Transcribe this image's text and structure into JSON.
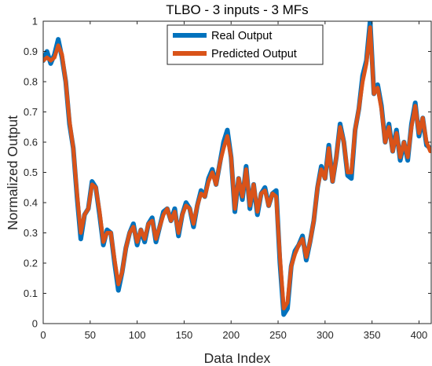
{
  "chart_data": {
    "type": "line",
    "title": "TLBO - 3 inputs - 3 MFs",
    "xlabel": "Data Index",
    "ylabel": "Normalized Output",
    "xlim": [
      0,
      413
    ],
    "ylim": [
      0,
      1
    ],
    "xticks": [
      0,
      50,
      100,
      150,
      200,
      250,
      300,
      350,
      400
    ],
    "yticks": [
      0,
      0.1,
      0.2,
      0.3,
      0.4,
      0.5,
      0.6,
      0.7,
      0.8,
      0.9,
      1
    ],
    "xtick_labels": [
      "0",
      "50",
      "100",
      "150",
      "200",
      "250",
      "300",
      "350",
      "400"
    ],
    "ytick_labels": [
      "0",
      "0.1",
      "0.2",
      "0.3",
      "0.4",
      "0.5",
      "0.6",
      "0.7",
      "0.8",
      "0.9",
      "1"
    ],
    "grid": false,
    "legend_position": "top-center",
    "series": [
      {
        "name": "Real Output",
        "color": "#0072BD",
        "x": [
          0,
          4,
          8,
          12,
          16,
          20,
          24,
          28,
          32,
          36,
          40,
          44,
          48,
          52,
          56,
          60,
          64,
          68,
          72,
          76,
          80,
          84,
          88,
          92,
          96,
          100,
          104,
          108,
          112,
          116,
          120,
          124,
          128,
          132,
          136,
          140,
          144,
          148,
          152,
          156,
          160,
          164,
          168,
          172,
          176,
          180,
          184,
          188,
          192,
          196,
          200,
          204,
          208,
          212,
          216,
          220,
          224,
          228,
          232,
          236,
          240,
          244,
          248,
          252,
          256,
          260,
          264,
          268,
          272,
          276,
          280,
          284,
          288,
          292,
          296,
          300,
          304,
          308,
          312,
          316,
          320,
          324,
          328,
          332,
          336,
          340,
          344,
          348,
          352,
          356,
          360,
          364,
          368,
          372,
          376,
          380,
          384,
          388,
          392,
          396,
          400,
          404,
          408,
          412
        ],
        "values": [
          0.87,
          0.9,
          0.86,
          0.89,
          0.94,
          0.88,
          0.8,
          0.66,
          0.58,
          0.42,
          0.28,
          0.36,
          0.38,
          0.47,
          0.45,
          0.36,
          0.26,
          0.31,
          0.3,
          0.2,
          0.11,
          0.17,
          0.25,
          0.3,
          0.33,
          0.26,
          0.31,
          0.27,
          0.33,
          0.35,
          0.27,
          0.32,
          0.37,
          0.38,
          0.34,
          0.38,
          0.29,
          0.36,
          0.4,
          0.38,
          0.32,
          0.39,
          0.44,
          0.42,
          0.48,
          0.51,
          0.46,
          0.53,
          0.6,
          0.64,
          0.55,
          0.37,
          0.48,
          0.41,
          0.52,
          0.38,
          0.46,
          0.36,
          0.43,
          0.45,
          0.39,
          0.43,
          0.44,
          0.2,
          0.03,
          0.05,
          0.19,
          0.24,
          0.26,
          0.29,
          0.21,
          0.27,
          0.34,
          0.45,
          0.52,
          0.48,
          0.59,
          0.47,
          0.55,
          0.66,
          0.6,
          0.49,
          0.48,
          0.64,
          0.71,
          0.82,
          0.87,
          1.0,
          0.76,
          0.79,
          0.72,
          0.6,
          0.66,
          0.57,
          0.64,
          0.54,
          0.6,
          0.54,
          0.66,
          0.73,
          0.62,
          0.68,
          0.59,
          0.58
        ]
      },
      {
        "name": "Predicted Output",
        "color": "#D95319",
        "x": [
          0,
          4,
          8,
          12,
          16,
          20,
          24,
          28,
          32,
          36,
          40,
          44,
          48,
          52,
          56,
          60,
          64,
          68,
          72,
          76,
          80,
          84,
          88,
          92,
          96,
          100,
          104,
          108,
          112,
          116,
          120,
          124,
          128,
          132,
          136,
          140,
          144,
          148,
          152,
          156,
          160,
          164,
          168,
          172,
          176,
          180,
          184,
          188,
          192,
          196,
          200,
          204,
          208,
          212,
          216,
          220,
          224,
          228,
          232,
          236,
          240,
          244,
          248,
          252,
          256,
          260,
          264,
          268,
          272,
          276,
          280,
          284,
          288,
          292,
          296,
          300,
          304,
          308,
          312,
          316,
          320,
          324,
          328,
          332,
          336,
          340,
          344,
          348,
          352,
          356,
          360,
          364,
          368,
          372,
          376,
          380,
          384,
          388,
          392,
          396,
          400,
          404,
          408,
          412
        ],
        "values": [
          0.87,
          0.88,
          0.87,
          0.88,
          0.92,
          0.89,
          0.8,
          0.67,
          0.58,
          0.43,
          0.3,
          0.36,
          0.38,
          0.46,
          0.45,
          0.37,
          0.27,
          0.3,
          0.3,
          0.21,
          0.13,
          0.17,
          0.25,
          0.3,
          0.32,
          0.27,
          0.31,
          0.28,
          0.33,
          0.34,
          0.28,
          0.32,
          0.36,
          0.38,
          0.34,
          0.37,
          0.3,
          0.36,
          0.39,
          0.38,
          0.33,
          0.39,
          0.43,
          0.42,
          0.47,
          0.5,
          0.46,
          0.53,
          0.58,
          0.62,
          0.55,
          0.38,
          0.48,
          0.42,
          0.51,
          0.39,
          0.46,
          0.37,
          0.43,
          0.44,
          0.39,
          0.43,
          0.42,
          0.22,
          0.05,
          0.07,
          0.19,
          0.23,
          0.26,
          0.28,
          0.22,
          0.27,
          0.34,
          0.45,
          0.51,
          0.48,
          0.58,
          0.47,
          0.55,
          0.65,
          0.6,
          0.5,
          0.5,
          0.64,
          0.71,
          0.8,
          0.86,
          0.98,
          0.76,
          0.78,
          0.71,
          0.6,
          0.65,
          0.57,
          0.63,
          0.55,
          0.6,
          0.55,
          0.65,
          0.72,
          0.63,
          0.68,
          0.6,
          0.57
        ]
      }
    ]
  }
}
